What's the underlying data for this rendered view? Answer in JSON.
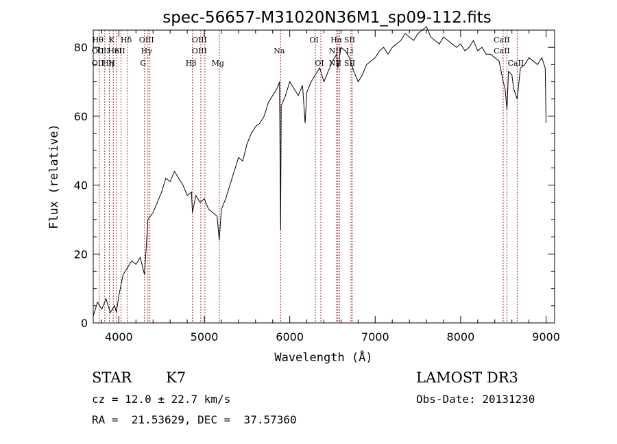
{
  "chart_data": {
    "type": "line",
    "title": "spec-56657-M31020N36M1_sp09-112.fits",
    "xlabel": "Wavelength (Å)",
    "ylabel": "Flux (relative)",
    "xlim": [
      3700,
      9100
    ],
    "ylim": [
      0,
      85
    ],
    "xticks": [
      4000,
      5000,
      6000,
      7000,
      8000,
      9000
    ],
    "yticks": [
      0,
      20,
      40,
      60,
      80
    ],
    "series": [
      {
        "x": [
          3700,
          3750,
          3800,
          3850,
          3900,
          3950,
          3970,
          4000,
          4050,
          4100,
          4150,
          4200,
          4250,
          4300,
          4340,
          4400,
          4450,
          4500,
          4550,
          4600,
          4650,
          4700,
          4750,
          4800,
          4850,
          4861,
          4900,
          4950,
          5000,
          5050,
          5100,
          5150,
          5175,
          5200,
          5250,
          5300,
          5350,
          5400,
          5450,
          5500,
          5550,
          5600,
          5650,
          5700,
          5750,
          5800,
          5850,
          5880,
          5893,
          5900,
          5950,
          6000,
          6050,
          6100,
          6150,
          6180,
          6200,
          6250,
          6300,
          6350,
          6400,
          6450,
          6500,
          6550,
          6563,
          6600,
          6650,
          6700,
          6750,
          6800,
          6850,
          6900,
          6950,
          7000,
          7050,
          7100,
          7150,
          7200,
          7250,
          7300,
          7350,
          7400,
          7450,
          7500,
          7550,
          7600,
          7650,
          7700,
          7750,
          7800,
          7850,
          7900,
          7950,
          8000,
          8050,
          8100,
          8150,
          8200,
          8250,
          8300,
          8350,
          8400,
          8450,
          8498,
          8520,
          8542,
          8560,
          8600,
          8620,
          8662,
          8700,
          8750,
          8800,
          8850,
          8900,
          8950,
          8990,
          9000
        ],
        "values": [
          2,
          6,
          4,
          7,
          3,
          5,
          3,
          8,
          14,
          16,
          18,
          17,
          19,
          14,
          30,
          32,
          35,
          38,
          42,
          41,
          44,
          42,
          40,
          37,
          38,
          32,
          37,
          35,
          36,
          33,
          32,
          31,
          24,
          33,
          36,
          40,
          44,
          48,
          47,
          52,
          55,
          57,
          58,
          60,
          64,
          66,
          68,
          70,
          27,
          63,
          66,
          70,
          68,
          66,
          69,
          58,
          67,
          70,
          72,
          74,
          70,
          73,
          76,
          78,
          74,
          80,
          79,
          77,
          73,
          70,
          72,
          75,
          76,
          77,
          79,
          80,
          78,
          80,
          81,
          82,
          84,
          83,
          82,
          84,
          85,
          86,
          83,
          82,
          81,
          83,
          82,
          81,
          80,
          81,
          79,
          80,
          82,
          79,
          80,
          78,
          78,
          77,
          76,
          70,
          68,
          62,
          73,
          72,
          68,
          65,
          74,
          75,
          77,
          76,
          75,
          77,
          74,
          58
        ]
      }
    ],
    "lines": [
      {
        "w": 3770,
        "labels": [
          "Hθ",
          "OII",
          "OII"
        ]
      },
      {
        "w": 3835,
        "labels": [
          "",
          "OII",
          ""
        ]
      },
      {
        "w": 3889,
        "labels": [
          "",
          "",
          "Hη"
        ]
      },
      {
        "w": 3934,
        "labels": [
          "K",
          "",
          "H"
        ]
      },
      {
        "w": 3970,
        "labels": [
          "",
          "HeI",
          ""
        ]
      },
      {
        "w": 4026,
        "labels": [
          "",
          "SII",
          ""
        ]
      },
      {
        "w": 4102,
        "labels": [
          "Hδ",
          "",
          ""
        ]
      },
      {
        "w": 4300,
        "labels": [
          "",
          "",
          "G"
        ]
      },
      {
        "w": 4340,
        "labels": [
          "OIII",
          "Hγ",
          ""
        ]
      },
      {
        "w": 4363,
        "labels": [
          "",
          "",
          ""
        ]
      },
      {
        "w": 4861,
        "labels": [
          "",
          "",
          "Hβ"
        ]
      },
      {
        "w": 4959,
        "labels": [
          "OIII",
          "OIII",
          ""
        ]
      },
      {
        "w": 5007,
        "labels": [
          "",
          "",
          ""
        ]
      },
      {
        "w": 5175,
        "labels": [
          "",
          "",
          "Mg"
        ]
      },
      {
        "w": 5893,
        "labels": [
          "",
          "Na",
          ""
        ]
      },
      {
        "w": 6300,
        "labels": [
          "OI",
          "",
          ""
        ]
      },
      {
        "w": 6364,
        "labels": [
          "",
          "",
          "OI"
        ]
      },
      {
        "w": 6548,
        "labels": [
          "",
          "NII",
          "NII"
        ]
      },
      {
        "w": 6563,
        "labels": [
          "Hα",
          "",
          ""
        ]
      },
      {
        "w": 6583,
        "labels": [
          "",
          "",
          ""
        ]
      },
      {
        "w": 6717,
        "labels": [
          "SII",
          "Li",
          "SII"
        ]
      },
      {
        "w": 6731,
        "labels": [
          "",
          "",
          ""
        ]
      },
      {
        "w": 8498,
        "labels": [
          "CaII",
          "CaII",
          ""
        ]
      },
      {
        "w": 8542,
        "labels": [
          "",
          "",
          ""
        ]
      },
      {
        "w": 8662,
        "labels": [
          "",
          "",
          "CaII"
        ]
      }
    ]
  },
  "info": {
    "object_class": "STAR",
    "subclass": "K7",
    "survey": "LAMOST DR3",
    "cz": "cz = 12.0 ± 22.7 km/s",
    "obs_date": "Obs-Date: 20131230",
    "coords": "RA =  21.53629, DEC =  37.57360"
  },
  "colors": {
    "spectrum": "#000000",
    "line_markers": "#b22222",
    "background": "#ffffff"
  }
}
